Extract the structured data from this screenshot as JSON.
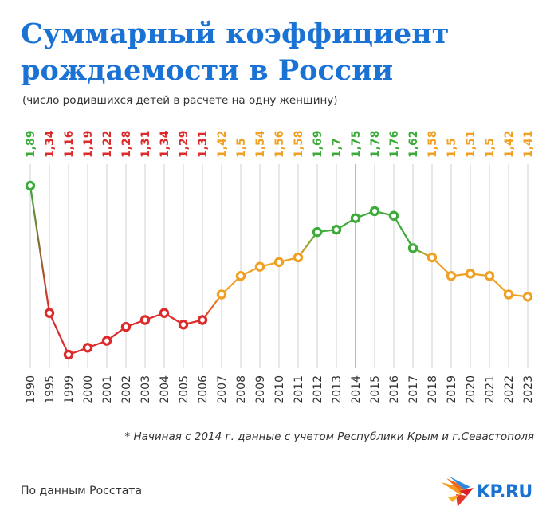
{
  "title": "Суммарный коэффициент рождаемости в России",
  "subtitle": "(число родившихся детей в расчете на одну женщину)",
  "footnote": "* Начиная с 2014 г. данные с учетом Республики Крым и г.Севастополя",
  "source": "По данным Росстата",
  "logo": {
    "text": "KP.RU",
    "icon": "kp-bird-logo"
  },
  "colors": {
    "title": "#1a73d4",
    "high": "#3cab3a",
    "mid": "#f0a022",
    "low": "#dd2a2a",
    "grid": "#d0d0d0"
  },
  "chart_data": {
    "type": "line",
    "categories": [
      "1990",
      "1995",
      "1999",
      "2000",
      "2001",
      "2002",
      "2003",
      "2004",
      "2005",
      "2006",
      "2007",
      "2008",
      "2009",
      "2010",
      "2011",
      "2012",
      "2013",
      "2014",
      "2015",
      "2016",
      "2017",
      "2018",
      "2019",
      "2020",
      "2021",
      "2022",
      "2023"
    ],
    "labels": [
      "1,89",
      "1,34",
      "1,16",
      "1,19",
      "1,22",
      "1,28",
      "1,31",
      "1,34",
      "1,29",
      "1,31",
      "1,42",
      "1,5",
      "1,54",
      "1,56",
      "1,58",
      "1,69",
      "1,7",
      "1,75",
      "1,78",
      "1,76",
      "1,62",
      "1,58",
      "1,5",
      "1,51",
      "1,5",
      "1,42",
      "1,41"
    ],
    "values": [
      1.89,
      1.34,
      1.16,
      1.19,
      1.22,
      1.28,
      1.31,
      1.34,
      1.29,
      1.31,
      1.42,
      1.5,
      1.54,
      1.56,
      1.58,
      1.69,
      1.7,
      1.75,
      1.78,
      1.76,
      1.62,
      1.58,
      1.5,
      1.51,
      1.5,
      1.42,
      1.41
    ],
    "color_levels": [
      "high",
      "low",
      "low",
      "low",
      "low",
      "low",
      "low",
      "low",
      "low",
      "low",
      "mid",
      "mid",
      "mid",
      "mid",
      "mid",
      "high",
      "high",
      "high",
      "high",
      "high",
      "high",
      "mid",
      "mid",
      "mid",
      "mid",
      "mid",
      "mid"
    ],
    "marked_category": "2014",
    "grid": true
  }
}
